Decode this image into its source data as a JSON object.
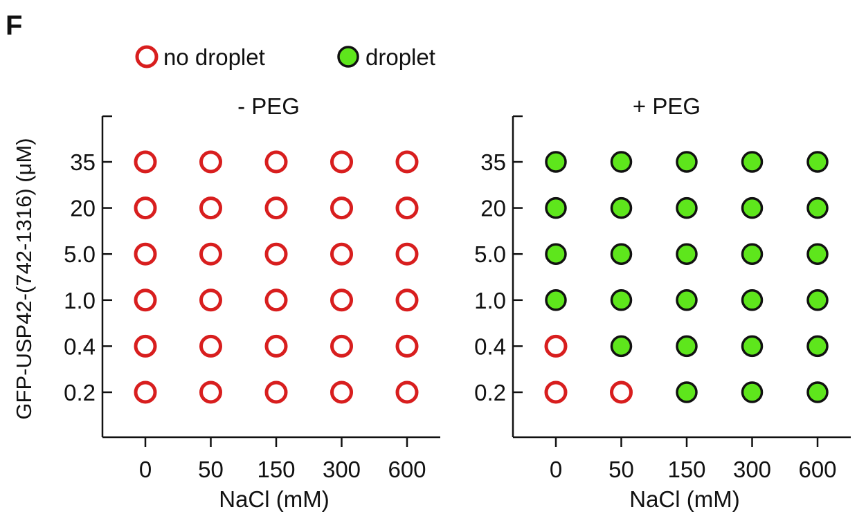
{
  "panel_label": "F",
  "legend": {
    "items": [
      {
        "label": "no droplet",
        "state": "no_droplet"
      },
      {
        "label": "droplet",
        "state": "droplet"
      }
    ]
  },
  "colors": {
    "no_droplet_stroke": "#d81e1e",
    "droplet_fill": "#5ee61c",
    "droplet_stroke": "#111111",
    "axis": "#111111"
  },
  "chart_data": [
    {
      "type": "scatter",
      "title": "- PEG",
      "xlabel": "NaCl (mM)",
      "ylabel": "GFP-USP42-(742-1316) (μM)",
      "categories_x": [
        "0",
        "50",
        "150",
        "300",
        "600"
      ],
      "categories_y": [
        "0.2",
        "0.4",
        "1.0",
        "5.0",
        "20",
        "35"
      ],
      "grid": false,
      "legend_position": "top-left",
      "states": [
        [
          "no_droplet",
          "no_droplet",
          "no_droplet",
          "no_droplet",
          "no_droplet"
        ],
        [
          "no_droplet",
          "no_droplet",
          "no_droplet",
          "no_droplet",
          "no_droplet"
        ],
        [
          "no_droplet",
          "no_droplet",
          "no_droplet",
          "no_droplet",
          "no_droplet"
        ],
        [
          "no_droplet",
          "no_droplet",
          "no_droplet",
          "no_droplet",
          "no_droplet"
        ],
        [
          "no_droplet",
          "no_droplet",
          "no_droplet",
          "no_droplet",
          "no_droplet"
        ],
        [
          "no_droplet",
          "no_droplet",
          "no_droplet",
          "no_droplet",
          "no_droplet"
        ]
      ]
    },
    {
      "type": "scatter",
      "title": "+ PEG",
      "xlabel": "NaCl (mM)",
      "ylabel": "",
      "categories_x": [
        "0",
        "50",
        "150",
        "300",
        "600"
      ],
      "categories_y": [
        "0.2",
        "0.4",
        "1.0",
        "5.0",
        "20",
        "35"
      ],
      "grid": false,
      "states": [
        [
          "no_droplet",
          "no_droplet",
          "droplet",
          "droplet",
          "droplet"
        ],
        [
          "no_droplet",
          "droplet",
          "droplet",
          "droplet",
          "droplet"
        ],
        [
          "droplet",
          "droplet",
          "droplet",
          "droplet",
          "droplet"
        ],
        [
          "droplet",
          "droplet",
          "droplet",
          "droplet",
          "droplet"
        ],
        [
          "droplet",
          "droplet",
          "droplet",
          "droplet",
          "droplet"
        ],
        [
          "droplet",
          "droplet",
          "droplet",
          "droplet",
          "droplet"
        ]
      ]
    }
  ]
}
